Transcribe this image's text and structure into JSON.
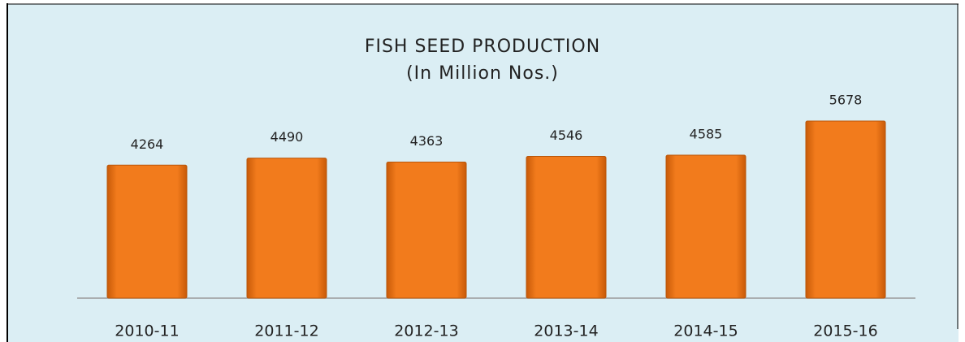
{
  "chart_data": {
    "type": "bar",
    "title": "FISH SEED PRODUCTION",
    "subtitle": "(In Million Nos.)",
    "categories": [
      "2010-11",
      "2011-12",
      "2012-13",
      "2013-14",
      "2014-15",
      "2015-16"
    ],
    "values": [
      4264,
      4490,
      4363,
      4546,
      4585,
      5678
    ],
    "color": "#f07a1a"
  }
}
